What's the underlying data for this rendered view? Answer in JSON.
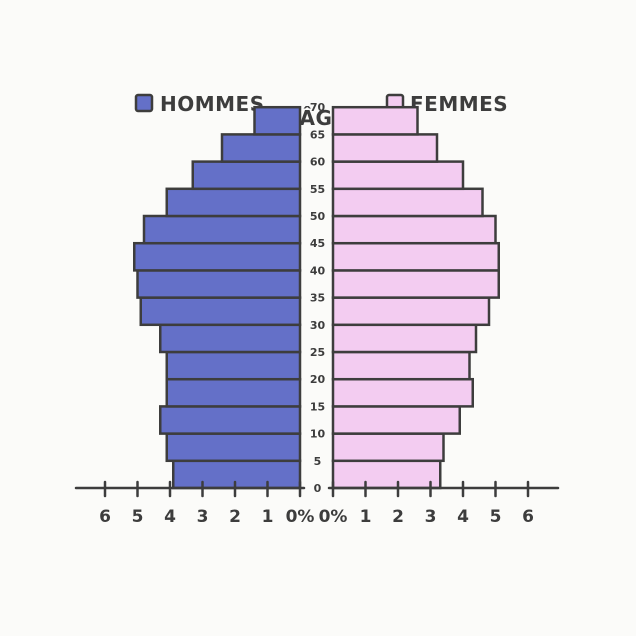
{
  "chart_data": {
    "type": "bar",
    "subtype": "population-pyramid",
    "title_center": "ÂGE",
    "legend": [
      {
        "key": "hommes",
        "label": "HOMMES",
        "color": "#6470c8"
      },
      {
        "key": "femmes",
        "label": "FEMMES",
        "color": "#f3ccf1"
      }
    ],
    "age_labels": [
      "0",
      "5",
      "10",
      "15",
      "20",
      "25",
      "30",
      "35",
      "40",
      "45",
      "50",
      "55",
      "60",
      "65",
      "70"
    ],
    "series": [
      {
        "name": "HOMMES",
        "color": "#6470c8",
        "values": [
          3.9,
          4.1,
          4.3,
          4.1,
          4.1,
          4.3,
          4.9,
          5.0,
          5.1,
          4.8,
          4.1,
          3.3,
          2.4,
          1.4
        ]
      },
      {
        "name": "FEMMES",
        "color": "#f3ccf1",
        "values": [
          3.3,
          3.4,
          3.9,
          4.3,
          4.2,
          4.4,
          4.8,
          5.1,
          5.1,
          5.0,
          4.6,
          4.0,
          3.2,
          2.6
        ]
      }
    ],
    "xlim": [
      0,
      6
    ],
    "left_ticks": [
      "6",
      "5",
      "4",
      "3",
      "2",
      "1",
      "0%"
    ],
    "right_ticks": [
      "0%",
      "1",
      "2",
      "3",
      "4",
      "5",
      "6"
    ],
    "bar_outline": "#3d3d3d"
  }
}
